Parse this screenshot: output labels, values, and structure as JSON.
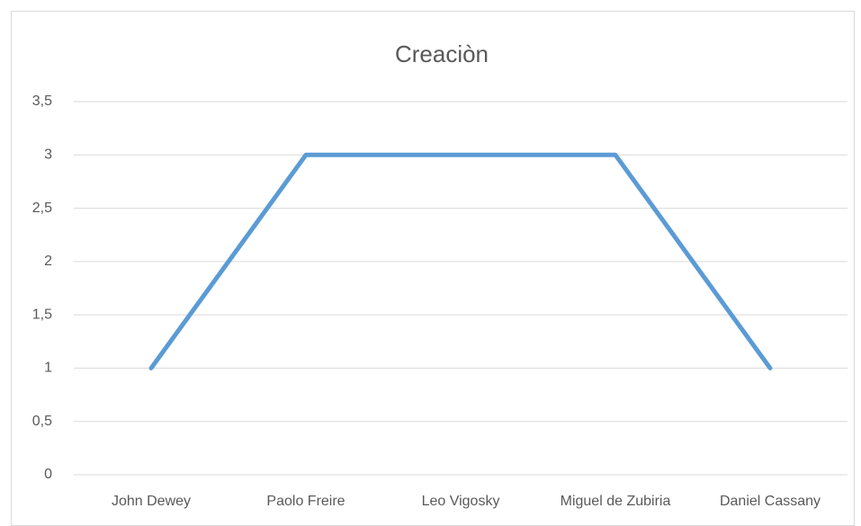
{
  "chart_data": {
    "type": "line",
    "title": "Creaciòn",
    "categories": [
      "John Dewey",
      "Paolo Freire",
      "Leo Vigosky",
      "Miguel de Zubiria",
      "Daniel Cassany"
    ],
    "series": [
      {
        "name": "Creaciòn",
        "color": "#5b9bd5",
        "values": [
          1,
          3,
          3,
          3,
          1
        ]
      }
    ],
    "ylim": [
      0,
      3.5
    ],
    "yticks": [
      0,
      {
        "value": 0.5,
        "label": "0,5"
      },
      1,
      {
        "value": 1.5,
        "label": "1,5"
      },
      2,
      {
        "value": 2.5,
        "label": "2,5"
      },
      3,
      {
        "value": 3.5,
        "label": "3,5"
      }
    ],
    "grid": true
  }
}
